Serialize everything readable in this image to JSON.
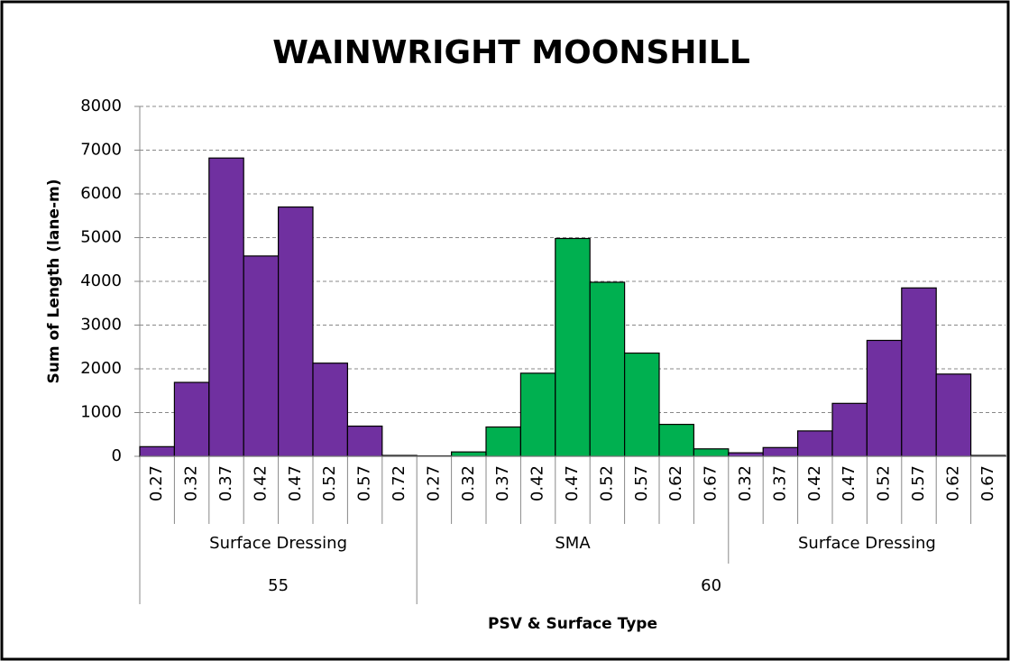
{
  "chart_data": {
    "type": "bar",
    "title": "WAINWRIGHT MOONSHILL",
    "y_label": "Sum of Length (lane-m)",
    "x_label": "PSV & Surface Type",
    "ylim": [
      0,
      8000
    ],
    "yticks": [
      0,
      1000,
      2000,
      3000,
      4000,
      5000,
      6000,
      7000,
      8000
    ],
    "grid": true,
    "psv": [
      {
        "name": "55",
        "surfaces": [
          {
            "name": "Surface Dressing",
            "color": "#7030a0",
            "categories": [
              "0.27",
              "0.32",
              "0.37",
              "0.42",
              "0.47",
              "0.52",
              "0.57",
              "0.72"
            ],
            "values": [
              220,
              1690,
              6820,
              4580,
              5700,
              2130,
              690,
              20
            ]
          }
        ]
      },
      {
        "name": "60",
        "surfaces": [
          {
            "name": "SMA",
            "color": "#00b050",
            "categories": [
              "0.27",
              "0.32",
              "0.37",
              "0.42",
              "0.47",
              "0.52",
              "0.57",
              "0.62",
              "0.67"
            ],
            "values": [
              10,
              100,
              670,
              1900,
              4980,
              3980,
              2360,
              730,
              170
            ]
          },
          {
            "name": "Surface Dressing",
            "color": "#7030a0",
            "categories": [
              "0.32",
              "0.37",
              "0.42",
              "0.47",
              "0.52",
              "0.57",
              "0.62",
              "0.67"
            ],
            "values": [
              80,
              200,
              580,
              1210,
              2650,
              3850,
              1880,
              20
            ]
          }
        ]
      }
    ]
  }
}
